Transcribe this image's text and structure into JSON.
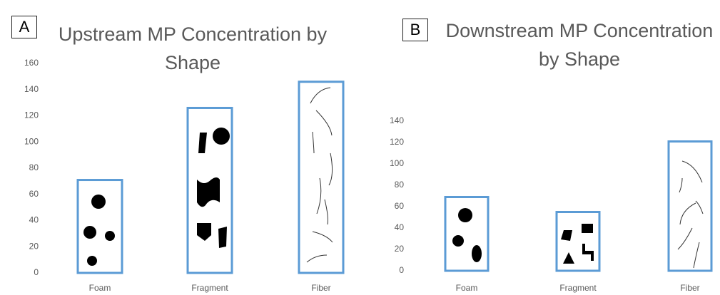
{
  "chart_data": [
    {
      "type": "bar",
      "panel_label": "A",
      "title": "Upstream MP Concentration by Shape",
      "categories": [
        "Foam",
        "Fragment",
        "Fiber"
      ],
      "values": [
        71,
        126,
        146
      ],
      "color": "#5b9bd5",
      "ylim": [
        0,
        160
      ],
      "yticks": [
        0,
        20,
        40,
        60,
        80,
        100,
        120,
        140,
        160
      ]
    },
    {
      "type": "bar",
      "panel_label": "B",
      "title": "Downstream MP Concentration by Shape",
      "categories": [
        "Foam",
        "Fragment",
        "Fiber"
      ],
      "values": [
        69,
        55,
        121
      ],
      "color": "#5b9bd5",
      "ylim": [
        0,
        140
      ],
      "yticks": [
        0,
        20,
        40,
        60,
        80,
        100,
        120,
        140
      ]
    }
  ]
}
